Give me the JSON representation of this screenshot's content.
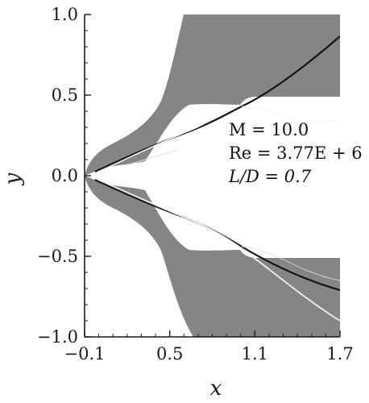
{
  "plot": {
    "x_axis_title": "x",
    "y_axis_title": "y",
    "x_ticks": [
      {
        "value": -0.1,
        "label": "−0.1"
      },
      {
        "value": 0.5,
        "label": "0.5"
      },
      {
        "value": 1.1,
        "label": "1.1"
      },
      {
        "value": 1.7,
        "label": "1.7"
      }
    ],
    "y_ticks": [
      {
        "value": 1.0,
        "label": "1.0"
      },
      {
        "value": 0.5,
        "label": "0.5"
      },
      {
        "value": 0.0,
        "label": "0.0"
      },
      {
        "value": -0.5,
        "label": "−0.5"
      },
      {
        "value": -1.0,
        "label": "−1.0"
      }
    ],
    "x_range": [
      -0.1,
      1.7
    ],
    "y_range": [
      -1.0,
      1.0
    ]
  },
  "annotation": {
    "mach": "M = 10.0",
    "reynolds": "Re = 3.77E + 6",
    "length_ratio": "L/D = 0.7"
  },
  "colors": {
    "background_field": "#858585",
    "shock_dark": "#141414",
    "shock_light": "#f2f2f2"
  }
}
